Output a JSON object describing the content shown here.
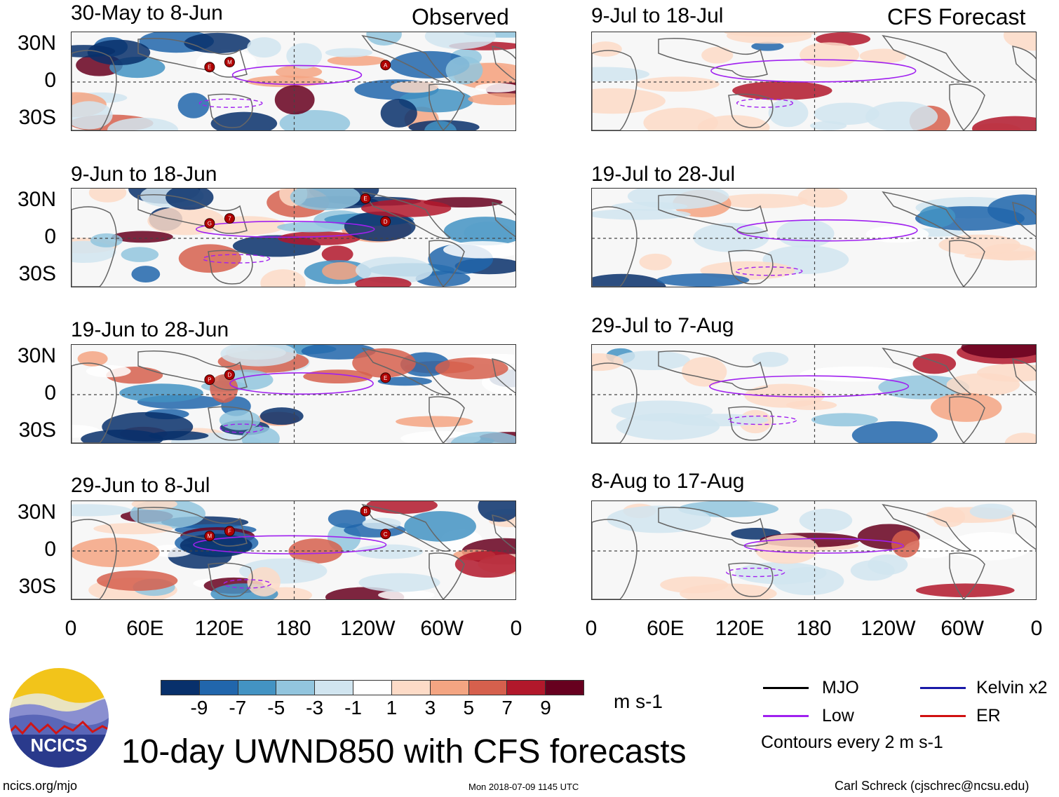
{
  "header": {
    "observed_label": "Observed",
    "forecast_label": "CFS Forecast"
  },
  "lat_labels": [
    "30N",
    "0",
    "30S"
  ],
  "lon_labels": [
    "0",
    "60E",
    "120E",
    "180",
    "120W",
    "60W",
    "0"
  ],
  "observed_panels": [
    {
      "period": "30-May to 8-Jun",
      "storms": [
        "E",
        "M",
        "A"
      ]
    },
    {
      "period": "9-Jun to 18-Jun",
      "storms": [
        "G",
        "7",
        "D",
        "E"
      ]
    },
    {
      "period": "19-Jun to 28-Jun",
      "storms": [
        "P",
        "D",
        "E"
      ]
    },
    {
      "period": "29-Jun to 8-Jul",
      "storms": [
        "M",
        "F",
        "C",
        "B"
      ]
    }
  ],
  "forecast_panels": [
    {
      "period": "9-Jul to 18-Jul"
    },
    {
      "period": "19-Jul to 28-Jul"
    },
    {
      "period": "29-Jul to 7-Aug"
    },
    {
      "period": "8-Aug to 17-Aug"
    }
  ],
  "colorbar": {
    "colors": [
      "#08306b",
      "#2166ac",
      "#4393c3",
      "#92c5de",
      "#d1e5f0",
      "#ffffff",
      "#fddbc7",
      "#f4a582",
      "#d6604d",
      "#b2182b",
      "#67001f"
    ],
    "labels": [
      "-9",
      "-7",
      "-5",
      "-3",
      "-1",
      "1",
      "3",
      "5",
      "7",
      "9"
    ],
    "units": "m s-1"
  },
  "title": "10-day UWND850 with CFS forecasts",
  "legend": {
    "items": [
      {
        "label": "MJO",
        "color": "#000000"
      },
      {
        "label": "Low",
        "color": "#a020f0"
      },
      {
        "label": "Kelvin x2",
        "color": "#1a1aa8"
      },
      {
        "label": "ER",
        "color": "#d01010"
      }
    ],
    "note": "Contours every 2 m s-1"
  },
  "logo": {
    "text": "NCICS"
  },
  "footer": {
    "url": "ncics.org/mjo",
    "timestamp": "Mon 2018-07-09 1145 UTC",
    "author": "Carl Schreck (cjschrec@ncsu.edu)"
  }
}
